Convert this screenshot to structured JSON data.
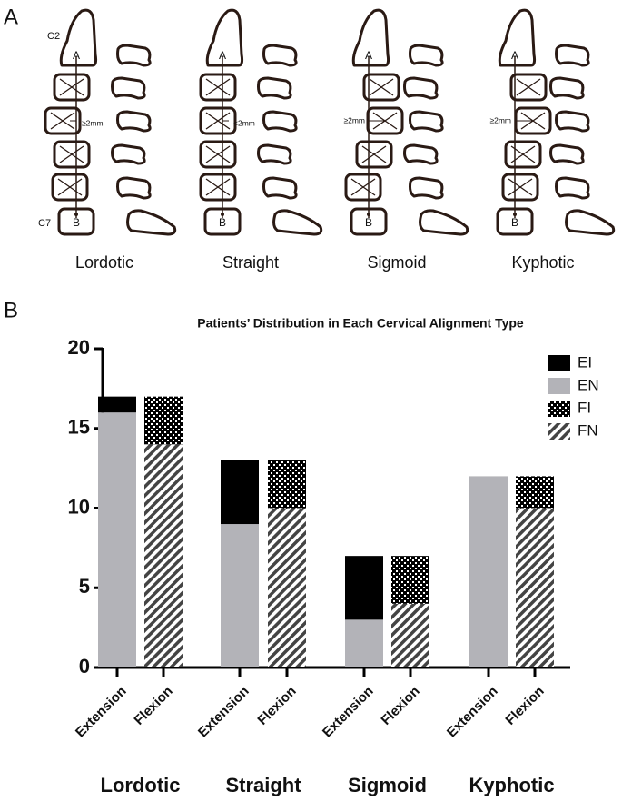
{
  "panel_a": {
    "label": "A",
    "top_label": "C2",
    "bottom_label": "C7",
    "point_a": "A",
    "point_b": "B",
    "types": [
      {
        "name": "Lordotic",
        "measure": "≥2mm"
      },
      {
        "name": "Straight",
        "measure": "<2mm"
      },
      {
        "name": "Sigmoid",
        "measure": "≥2mm"
      },
      {
        "name": "Kyphotic",
        "measure": "≥2mm"
      }
    ]
  },
  "chart_data": {
    "type": "bar",
    "stacked": true,
    "label": "B",
    "title": "Patients’ Distribution in Each Cervical Alignment Type",
    "groups": [
      "Lordotic",
      "Straight",
      "Sigmoid",
      "Kyphotic"
    ],
    "categories": [
      "Extension",
      "Flexion",
      "Extension",
      "Flexion",
      "Extension",
      "Flexion",
      "Extension",
      "Flexion"
    ],
    "series": [
      {
        "name": "EI",
        "color": "#000000",
        "pattern": "solid",
        "values": [
          1,
          null,
          4,
          null,
          4,
          null,
          0,
          null
        ]
      },
      {
        "name": "EN",
        "color": "#b3b3b8",
        "pattern": "solid",
        "values": [
          16,
          null,
          9,
          null,
          3,
          null,
          12,
          null
        ]
      },
      {
        "name": "FI",
        "color": "#000000",
        "pattern": "dots",
        "values": [
          null,
          3,
          null,
          3,
          null,
          3,
          null,
          2
        ]
      },
      {
        "name": "FN",
        "color": "#444444",
        "pattern": "hatch",
        "values": [
          null,
          14,
          null,
          10,
          null,
          4,
          null,
          10
        ]
      }
    ],
    "ylim": [
      0,
      20
    ],
    "yticks": [
      0,
      5,
      10,
      15,
      20
    ],
    "legend": "top-right"
  }
}
